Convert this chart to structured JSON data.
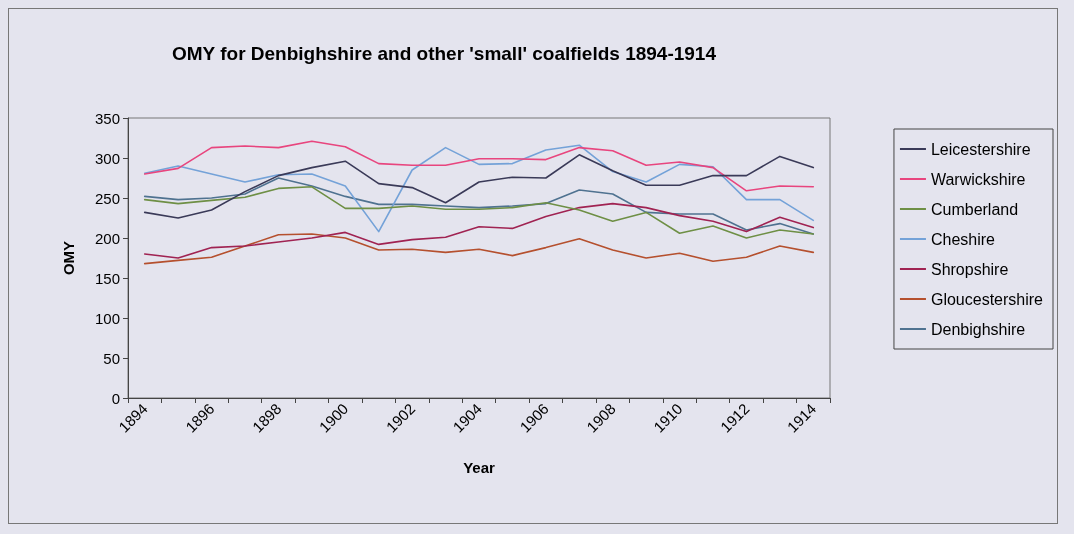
{
  "chart_data": {
    "type": "line",
    "title": "OMY for Denbighshire and other 'small' coalfields 1894-1914",
    "xlabel": "Year",
    "ylabel": "OMY",
    "categories": [
      "1894",
      null,
      "1896",
      null,
      "1898",
      null,
      "1900",
      null,
      "1902",
      null,
      "1904",
      null,
      "1906",
      null,
      "1908",
      null,
      "1910",
      null,
      "1912",
      null,
      "1914"
    ],
    "series": [
      {
        "name": "Leicestershire",
        "color": "#3a3a58",
        "values": [
          232,
          225,
          235,
          258,
          278,
          288,
          296,
          268,
          263,
          244,
          270,
          276,
          275,
          304,
          284,
          266,
          266,
          278,
          278,
          302,
          288
        ]
      },
      {
        "name": "Warwickshire",
        "color": "#e8457e",
        "values": [
          280,
          287,
          313,
          315,
          313,
          321,
          314,
          293,
          291,
          291,
          299,
          299,
          298,
          313,
          309,
          291,
          295,
          288,
          259,
          265,
          264
        ]
      },
      {
        "name": "Cumberland",
        "color": "#6e8f45",
        "values": [
          248,
          243,
          247,
          251,
          262,
          264,
          237,
          237,
          240,
          236,
          236,
          238,
          244,
          235,
          221,
          232,
          206,
          215,
          200,
          210,
          205
        ]
      },
      {
        "name": "Cheshire",
        "color": "#74a2d8",
        "values": [
          281,
          290,
          280,
          270,
          279,
          280,
          265,
          208,
          285,
          313,
          292,
          293,
          310,
          316,
          283,
          270,
          292,
          289,
          248,
          248,
          222
        ]
      },
      {
        "name": "Shropshire",
        "color": "#a02352",
        "values": [
          180,
          175,
          188,
          190,
          195,
          200,
          207,
          192,
          198,
          201,
          214,
          212,
          227,
          238,
          243,
          238,
          228,
          221,
          208,
          226,
          213
        ]
      },
      {
        "name": "Gloucestershire",
        "color": "#b5502e",
        "values": [
          168,
          172,
          176,
          190,
          204,
          205,
          200,
          185,
          186,
          182,
          186,
          178,
          188,
          199,
          185,
          175,
          181,
          171,
          176,
          190,
          182
        ]
      },
      {
        "name": "Denbighshire",
        "color": "#4f7290",
        "values": [
          252,
          248,
          250,
          255,
          275,
          265,
          252,
          242,
          242,
          240,
          238,
          240,
          243,
          260,
          255,
          232,
          230,
          230,
          210,
          218,
          205
        ]
      }
    ],
    "ylim": [
      0,
      350
    ],
    "yticks": [
      0,
      50,
      100,
      150,
      200,
      250,
      300,
      350
    ],
    "grid": false,
    "legend": "right",
    "marker": "none",
    "line_style": "solid"
  }
}
